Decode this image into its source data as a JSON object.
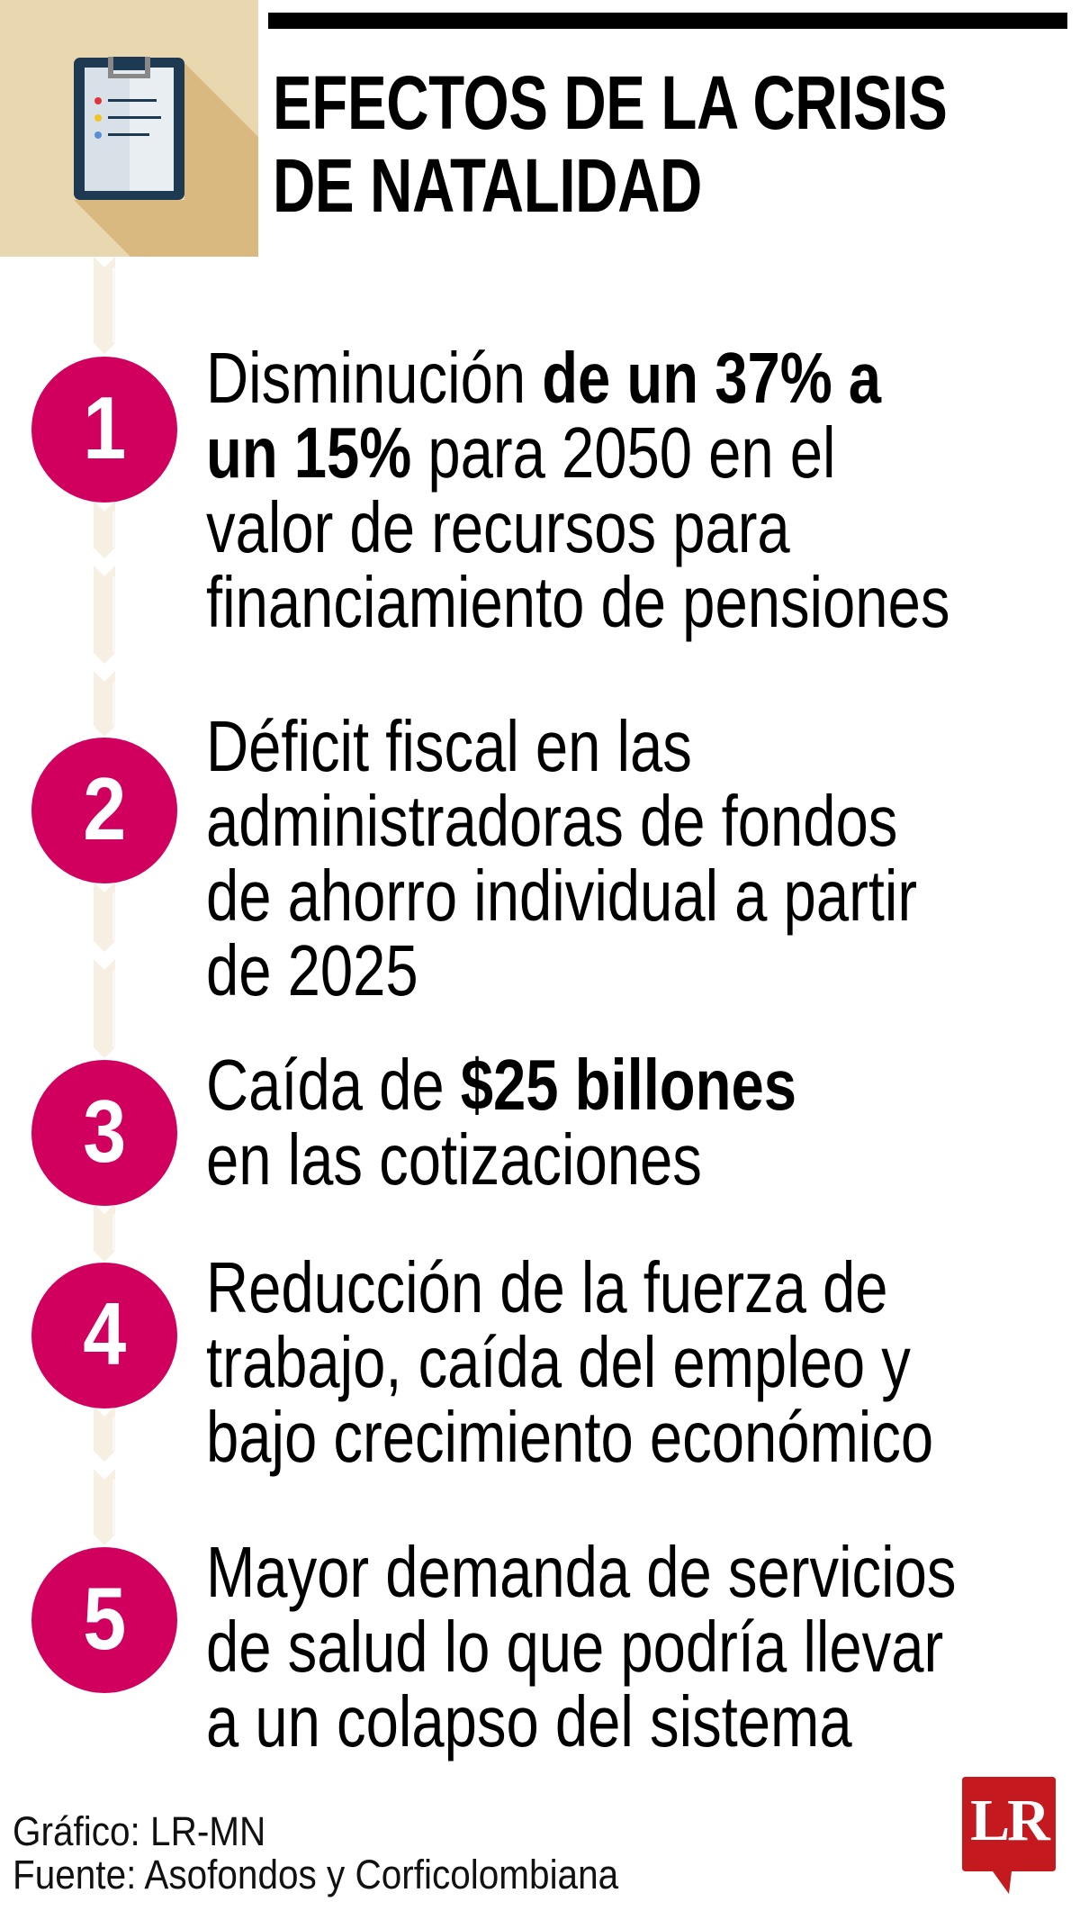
{
  "header": {
    "icon": "clipboard-icon",
    "title_lines": [
      "EFECTOS DE LA CRISIS",
      "DE NATALIDAD"
    ]
  },
  "colors": {
    "accent_circle": "#D1005E",
    "timeline": "#F6EFE2",
    "header_box": "#E9D7B0",
    "header_shadow": "#D9B97F",
    "logo_red": "#C41A1F"
  },
  "items": [
    {
      "number": "1",
      "lines": [
        [
          {
            "t": "Disminución ",
            "b": false
          },
          {
            "t": "de un 37% a",
            "b": true
          }
        ],
        [
          {
            "t": "un 15%",
            "b": true
          },
          {
            "t": " para 2050 en el",
            "b": false
          }
        ],
        [
          {
            "t": "valor de recursos para",
            "b": false
          }
        ],
        [
          {
            "t": "financiamiento de pensiones",
            "b": false
          }
        ]
      ]
    },
    {
      "number": "2",
      "lines": [
        [
          {
            "t": "Déficit fiscal en las",
            "b": false
          }
        ],
        [
          {
            "t": "administradoras de fondos",
            "b": false
          }
        ],
        [
          {
            "t": "de ahorro individual a partir",
            "b": false
          }
        ],
        [
          {
            "t": "de 2025",
            "b": false
          }
        ]
      ]
    },
    {
      "number": "3",
      "lines": [
        [
          {
            "t": "Caída de ",
            "b": false
          },
          {
            "t": "$25 billones",
            "b": true
          }
        ],
        [
          {
            "t": "en las cotizaciones",
            "b": false
          }
        ]
      ]
    },
    {
      "number": "4",
      "lines": [
        [
          {
            "t": "Reducción de la fuerza de",
            "b": false
          }
        ],
        [
          {
            "t": "trabajo, caída del empleo y",
            "b": false
          }
        ],
        [
          {
            "t": "bajo crecimiento económico",
            "b": false
          }
        ]
      ]
    },
    {
      "number": "5",
      "lines": [
        [
          {
            "t": "Mayor demanda de servicios",
            "b": false
          }
        ],
        [
          {
            "t": "de salud lo que podría llevar",
            "b": false
          }
        ],
        [
          {
            "t": "a un colapso del sistema",
            "b": false
          }
        ]
      ]
    }
  ],
  "footer": {
    "credit": "Gráfico: LR-MN",
    "source": "Fuente: Asofondos y Corficolombiana",
    "logo_text": "LR"
  }
}
